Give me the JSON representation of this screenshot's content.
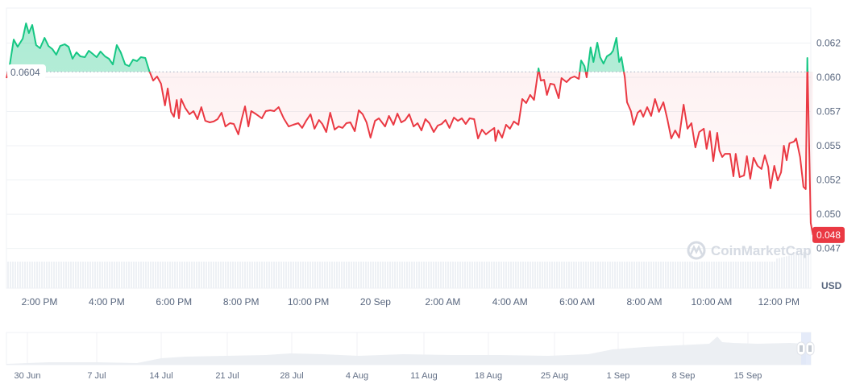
{
  "watermark": "CoinMarketCap",
  "chart_data": {
    "type": "line",
    "currency_label": "USD",
    "baseline": {
      "value": 0.0604,
      "label": "0.0604"
    },
    "last_price": {
      "value": 0.04848,
      "label": "0.048"
    },
    "colors": {
      "up": "#16c784",
      "down": "#ea3943",
      "grid": "#eff2f5",
      "volume": "#eef1f5"
    },
    "grid": true,
    "y_ticks": [
      {
        "value": 0.0625,
        "label": "0.062"
      },
      {
        "value": 0.06,
        "label": "0.060"
      },
      {
        "value": 0.0575,
        "label": "0.057"
      },
      {
        "value": 0.055,
        "label": "0.055"
      },
      {
        "value": 0.0525,
        "label": "0.052"
      },
      {
        "value": 0.05,
        "label": "0.050"
      },
      {
        "value": 0.0475,
        "label": "0.047"
      }
    ],
    "x_ticks": [
      {
        "time": "19 Sep 14:00",
        "label": "2:00 PM"
      },
      {
        "time": "19 Sep 16:00",
        "label": "4:00 PM"
      },
      {
        "time": "19 Sep 18:00",
        "label": "6:00 PM"
      },
      {
        "time": "19 Sep 20:00",
        "label": "8:00 PM"
      },
      {
        "time": "19 Sep 22:00",
        "label": "10:00 PM"
      },
      {
        "time": "20 Sep 00:00",
        "label": "20 Sep"
      },
      {
        "time": "20 Sep 02:00",
        "label": "2:00 AM"
      },
      {
        "time": "20 Sep 04:00",
        "label": "4:00 AM"
      },
      {
        "time": "20 Sep 06:00",
        "label": "6:00 AM"
      },
      {
        "time": "20 Sep 08:00",
        "label": "8:00 AM"
      },
      {
        "time": "20 Sep 10:00",
        "label": "10:00 AM"
      },
      {
        "time": "20 Sep 12:00",
        "label": "12:00 PM"
      }
    ],
    "series": [
      [
        "19 Sep 13:01",
        0.05994
      ],
      [
        "19 Sep 13:07",
        0.06094
      ],
      [
        "19 Sep 13:14",
        0.06276
      ],
      [
        "19 Sep 13:21",
        0.06223
      ],
      [
        "19 Sep 13:30",
        0.06282
      ],
      [
        "19 Sep 13:36",
        0.06394
      ],
      [
        "19 Sep 13:41",
        0.06323
      ],
      [
        "19 Sep 13:47",
        0.06382
      ],
      [
        "19 Sep 13:54",
        0.06235
      ],
      [
        "19 Sep 14:01",
        0.06212
      ],
      [
        "19 Sep 14:09",
        0.06288
      ],
      [
        "19 Sep 14:16",
        0.06229
      ],
      [
        "19 Sep 14:23",
        0.06206
      ],
      [
        "19 Sep 14:30",
        0.06165
      ],
      [
        "19 Sep 14:37",
        0.06229
      ],
      [
        "19 Sep 14:45",
        0.06241
      ],
      [
        "19 Sep 14:52",
        0.06223
      ],
      [
        "19 Sep 14:59",
        0.06135
      ],
      [
        "19 Sep 15:06",
        0.06182
      ],
      [
        "19 Sep 15:13",
        0.06153
      ],
      [
        "19 Sep 15:21",
        0.06147
      ],
      [
        "19 Sep 15:28",
        0.06194
      ],
      [
        "19 Sep 15:35",
        0.06171
      ],
      [
        "19 Sep 15:42",
        0.06147
      ],
      [
        "19 Sep 15:49",
        0.06188
      ],
      [
        "19 Sep 15:57",
        0.06153
      ],
      [
        "19 Sep 16:04",
        0.06135
      ],
      [
        "19 Sep 16:11",
        0.06094
      ],
      [
        "19 Sep 16:18",
        0.06235
      ],
      [
        "19 Sep 16:25",
        0.06182
      ],
      [
        "19 Sep 16:33",
        0.06094
      ],
      [
        "19 Sep 16:40",
        0.06082
      ],
      [
        "19 Sep 16:47",
        0.06129
      ],
      [
        "19 Sep 16:54",
        0.06118
      ],
      [
        "19 Sep 17:01",
        0.06147
      ],
      [
        "19 Sep 17:09",
        0.06141
      ],
      [
        "19 Sep 17:16",
        0.06047
      ],
      [
        "19 Sep 17:23",
        0.05976
      ],
      [
        "19 Sep 17:30",
        0.06006
      ],
      [
        "19 Sep 17:37",
        0.05953
      ],
      [
        "19 Sep 17:44",
        0.05794
      ],
      [
        "19 Sep 17:49",
        0.05918
      ],
      [
        "19 Sep 17:55",
        0.05747
      ],
      [
        "19 Sep 18:00",
        0.05712
      ],
      [
        "19 Sep 18:05",
        0.05835
      ],
      [
        "19 Sep 18:09",
        0.057
      ],
      [
        "19 Sep 18:13",
        0.05841
      ],
      [
        "19 Sep 18:20",
        0.05777
      ],
      [
        "19 Sep 18:28",
        0.0573
      ],
      [
        "19 Sep 18:35",
        0.05753
      ],
      [
        "19 Sep 18:42",
        0.05694
      ],
      [
        "19 Sep 18:49",
        0.05782
      ],
      [
        "19 Sep 18:56",
        0.05682
      ],
      [
        "19 Sep 19:04",
        0.05671
      ],
      [
        "19 Sep 19:11",
        0.05677
      ],
      [
        "19 Sep 19:18",
        0.05694
      ],
      [
        "19 Sep 19:25",
        0.05741
      ],
      [
        "19 Sep 19:32",
        0.05641
      ],
      [
        "19 Sep 19:40",
        0.05665
      ],
      [
        "19 Sep 19:47",
        0.05659
      ],
      [
        "19 Sep 19:55",
        0.05583
      ],
      [
        "19 Sep 20:01",
        0.05694
      ],
      [
        "19 Sep 20:07",
        0.05788
      ],
      [
        "19 Sep 20:13",
        0.05641
      ],
      [
        "19 Sep 20:18",
        0.05753
      ],
      [
        "19 Sep 20:27",
        0.0573
      ],
      [
        "19 Sep 20:37",
        0.057
      ],
      [
        "19 Sep 20:44",
        0.05753
      ],
      [
        "19 Sep 20:52",
        0.05759
      ],
      [
        "19 Sep 20:59",
        0.05753
      ],
      [
        "19 Sep 21:07",
        0.05782
      ],
      [
        "19 Sep 21:16",
        0.057
      ],
      [
        "19 Sep 21:25",
        0.05641
      ],
      [
        "19 Sep 21:33",
        0.05653
      ],
      [
        "19 Sep 21:42",
        0.05665
      ],
      [
        "19 Sep 21:49",
        0.0563
      ],
      [
        "19 Sep 21:56",
        0.05682
      ],
      [
        "19 Sep 22:04",
        0.0573
      ],
      [
        "19 Sep 22:11",
        0.05624
      ],
      [
        "19 Sep 22:19",
        0.05688
      ],
      [
        "19 Sep 22:25",
        0.05659
      ],
      [
        "19 Sep 22:32",
        0.056
      ],
      [
        "19 Sep 22:39",
        0.05741
      ],
      [
        "19 Sep 22:47",
        0.05618
      ],
      [
        "19 Sep 22:54",
        0.05641
      ],
      [
        "19 Sep 23:01",
        0.0563
      ],
      [
        "19 Sep 23:08",
        0.05665
      ],
      [
        "19 Sep 23:15",
        0.05671
      ],
      [
        "19 Sep 23:23",
        0.05606
      ],
      [
        "19 Sep 23:30",
        0.05759
      ],
      [
        "19 Sep 23:37",
        0.0573
      ],
      [
        "19 Sep 23:44",
        0.05671
      ],
      [
        "19 Sep 23:51",
        0.05559
      ],
      [
        "19 Sep 23:59",
        0.05682
      ],
      [
        "20 Sep 00:06",
        0.057
      ],
      [
        "20 Sep 00:17",
        0.05641
      ],
      [
        "20 Sep 00:24",
        0.05718
      ],
      [
        "20 Sep 00:32",
        0.05653
      ],
      [
        "20 Sep 00:39",
        0.05735
      ],
      [
        "20 Sep 00:46",
        0.05671
      ],
      [
        "20 Sep 00:53",
        0.05688
      ],
      [
        "20 Sep 01:00",
        0.0573
      ],
      [
        "20 Sep 01:08",
        0.05641
      ],
      [
        "20 Sep 01:15",
        0.05665
      ],
      [
        "20 Sep 01:22",
        0.05612
      ],
      [
        "20 Sep 01:29",
        0.05694
      ],
      [
        "20 Sep 01:36",
        0.05665
      ],
      [
        "20 Sep 01:44",
        0.056
      ],
      [
        "20 Sep 01:51",
        0.05647
      ],
      [
        "20 Sep 01:58",
        0.05659
      ],
      [
        "20 Sep 02:05",
        0.05688
      ],
      [
        "20 Sep 02:12",
        0.0563
      ],
      [
        "20 Sep 02:20",
        0.05706
      ],
      [
        "20 Sep 02:27",
        0.05682
      ],
      [
        "20 Sep 02:34",
        0.057
      ],
      [
        "20 Sep 02:41",
        0.05659
      ],
      [
        "20 Sep 02:48",
        0.057
      ],
      [
        "20 Sep 02:56",
        0.05694
      ],
      [
        "20 Sep 03:03",
        0.05553
      ],
      [
        "20 Sep 03:10",
        0.05618
      ],
      [
        "20 Sep 03:17",
        0.05583
      ],
      [
        "20 Sep 03:24",
        0.05606
      ],
      [
        "20 Sep 03:32",
        0.0563
      ],
      [
        "20 Sep 03:34",
        0.05535
      ],
      [
        "20 Sep 03:39",
        0.05612
      ],
      [
        "20 Sep 03:46",
        0.05559
      ],
      [
        "20 Sep 03:53",
        0.05653
      ],
      [
        "20 Sep 04:00",
        0.05624
      ],
      [
        "20 Sep 04:07",
        0.05677
      ],
      [
        "20 Sep 04:15",
        0.05653
      ],
      [
        "20 Sep 04:22",
        0.05841
      ],
      [
        "20 Sep 04:29",
        0.05812
      ],
      [
        "20 Sep 04:36",
        0.05871
      ],
      [
        "20 Sep 04:43",
        0.05835
      ],
      [
        "20 Sep 04:51",
        0.06065
      ],
      [
        "20 Sep 04:55",
        0.05976
      ],
      [
        "20 Sep 05:01",
        0.05982
      ],
      [
        "20 Sep 05:06",
        0.05871
      ],
      [
        "20 Sep 05:12",
        0.05953
      ],
      [
        "20 Sep 05:19",
        0.05947
      ],
      [
        "20 Sep 05:27",
        0.05847
      ],
      [
        "20 Sep 05:32",
        0.05994
      ],
      [
        "20 Sep 05:41",
        0.05965
      ],
      [
        "20 Sep 05:48",
        0.05994
      ],
      [
        "20 Sep 05:55",
        0.06006
      ],
      [
        "20 Sep 06:03",
        0.05988
      ],
      [
        "20 Sep 06:07",
        0.06123
      ],
      [
        "20 Sep 06:13",
        0.06082
      ],
      [
        "20 Sep 06:17",
        0.06
      ],
      [
        "20 Sep 06:24",
        0.06218
      ],
      [
        "20 Sep 06:29",
        0.06112
      ],
      [
        "20 Sep 06:36",
        0.06253
      ],
      [
        "20 Sep 06:41",
        0.06147
      ],
      [
        "20 Sep 06:47",
        0.061
      ],
      [
        "20 Sep 06:53",
        0.06153
      ],
      [
        "20 Sep 07:00",
        0.06171
      ],
      [
        "20 Sep 07:04",
        0.06194
      ],
      [
        "20 Sep 07:10",
        0.06288
      ],
      [
        "20 Sep 07:15",
        0.06112
      ],
      [
        "20 Sep 07:19",
        0.06147
      ],
      [
        "20 Sep 07:25",
        0.06
      ],
      [
        "20 Sep 07:29",
        0.05818
      ],
      [
        "20 Sep 07:36",
        0.05753
      ],
      [
        "20 Sep 07:41",
        0.05653
      ],
      [
        "20 Sep 07:48",
        0.05741
      ],
      [
        "20 Sep 07:53",
        0.05759
      ],
      [
        "20 Sep 07:58",
        0.05712
      ],
      [
        "20 Sep 08:05",
        0.05782
      ],
      [
        "20 Sep 08:12",
        0.05718
      ],
      [
        "20 Sep 08:19",
        0.05841
      ],
      [
        "20 Sep 08:26",
        0.05747
      ],
      [
        "20 Sep 08:34",
        0.05818
      ],
      [
        "20 Sep 08:41",
        0.05694
      ],
      [
        "20 Sep 08:48",
        0.05553
      ],
      [
        "20 Sep 08:55",
        0.05612
      ],
      [
        "20 Sep 09:02",
        0.05559
      ],
      [
        "20 Sep 09:10",
        0.058
      ],
      [
        "20 Sep 09:17",
        0.05624
      ],
      [
        "20 Sep 09:24",
        0.05665
      ],
      [
        "20 Sep 09:31",
        0.05488
      ],
      [
        "20 Sep 09:38",
        0.056
      ],
      [
        "20 Sep 09:46",
        0.05624
      ],
      [
        "20 Sep 09:51",
        0.05477
      ],
      [
        "20 Sep 09:57",
        0.05606
      ],
      [
        "20 Sep 10:03",
        0.05388
      ],
      [
        "20 Sep 10:10",
        0.05594
      ],
      [
        "20 Sep 10:14",
        0.05465
      ],
      [
        "20 Sep 10:19",
        0.05418
      ],
      [
        "20 Sep 10:24",
        0.05441
      ],
      [
        "20 Sep 10:33",
        0.05441
      ],
      [
        "20 Sep 10:39",
        0.05277
      ],
      [
        "20 Sep 10:43",
        0.05441
      ],
      [
        "20 Sep 10:50",
        0.05271
      ],
      [
        "20 Sep 10:58",
        0.05283
      ],
      [
        "20 Sep 11:03",
        0.05424
      ],
      [
        "20 Sep 11:09",
        0.05259
      ],
      [
        "20 Sep 11:15",
        0.05412
      ],
      [
        "20 Sep 11:22",
        0.05353
      ],
      [
        "20 Sep 11:29",
        0.0533
      ],
      [
        "20 Sep 11:35",
        0.0543
      ],
      [
        "20 Sep 11:41",
        0.05347
      ],
      [
        "20 Sep 11:45",
        0.05189
      ],
      [
        "20 Sep 11:52",
        0.05353
      ],
      [
        "20 Sep 11:58",
        0.05247
      ],
      [
        "20 Sep 12:04",
        0.05306
      ],
      [
        "20 Sep 12:09",
        0.055
      ],
      [
        "20 Sep 12:14",
        0.05394
      ],
      [
        "20 Sep 12:19",
        0.05518
      ],
      [
        "20 Sep 12:27",
        0.0553
      ],
      [
        "20 Sep 12:31",
        0.05553
      ],
      [
        "20 Sep 12:38",
        0.05418
      ],
      [
        "20 Sep 12:44",
        0.052
      ],
      [
        "20 Sep 12:48",
        0.05183
      ],
      [
        "20 Sep 12:51",
        0.06141
      ],
      [
        "20 Sep 12:57",
        0.04936
      ],
      [
        "20 Sep 13:01",
        0.04848
      ]
    ],
    "navigator": {
      "labels": [
        "30 Jun",
        "7 Jul",
        "14 Jul",
        "21 Jul",
        "28 Jul",
        "4 Aug",
        "11 Aug",
        "18 Aug",
        "25 Aug",
        "1 Sep",
        "8 Sep",
        "15 Sep"
      ]
    }
  }
}
